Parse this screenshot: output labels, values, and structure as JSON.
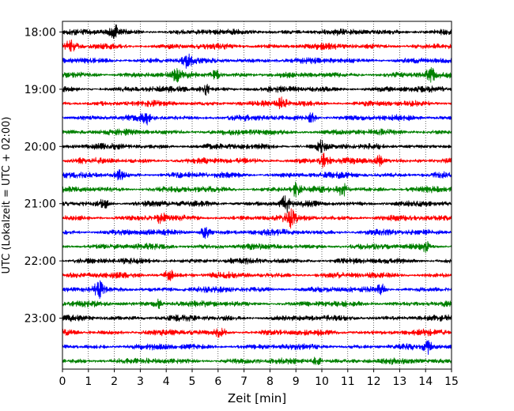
{
  "chart_data": {
    "type": "line",
    "title": "",
    "xlabel": "Zeit  [min]",
    "ylabel": "UTC (Lokalzeit = UTC + 02:00)",
    "xlim": [
      0,
      15
    ],
    "x_ticks": [
      0,
      1,
      2,
      3,
      4,
      5,
      6,
      7,
      8,
      9,
      10,
      11,
      12,
      13,
      14,
      15
    ],
    "y_ticks": [
      "18:00",
      "19:00",
      "20:00",
      "21:00",
      "22:00",
      "23:00"
    ],
    "start_time": "18:00",
    "trace_interval_minutes": 15,
    "trace_count": 24,
    "trace_colors": [
      "#000000",
      "#ff0000",
      "#0000ff",
      "#008000"
    ],
    "vertical_grid": "dotted",
    "events": [
      {
        "trace": 0,
        "minute": 2.0,
        "strength": 2.2
      },
      {
        "trace": 1,
        "minute": 0.3,
        "strength": 1.4
      },
      {
        "trace": 2,
        "minute": 4.8,
        "strength": 2.0
      },
      {
        "trace": 3,
        "minute": 4.4,
        "strength": 1.5
      },
      {
        "trace": 3,
        "minute": 5.9,
        "strength": 1.5
      },
      {
        "trace": 3,
        "minute": 14.2,
        "strength": 1.8
      },
      {
        "trace": 4,
        "minute": 5.5,
        "strength": 1.8
      },
      {
        "trace": 5,
        "minute": 8.5,
        "strength": 2.0
      },
      {
        "trace": 6,
        "minute": 3.2,
        "strength": 1.8
      },
      {
        "trace": 6,
        "minute": 9.6,
        "strength": 1.6
      },
      {
        "trace": 8,
        "minute": 10.0,
        "strength": 1.7
      },
      {
        "trace": 9,
        "minute": 10.1,
        "strength": 2.0
      },
      {
        "trace": 9,
        "minute": 12.2,
        "strength": 1.5
      },
      {
        "trace": 10,
        "minute": 2.2,
        "strength": 1.4
      },
      {
        "trace": 11,
        "minute": 9.0,
        "strength": 2.0
      },
      {
        "trace": 11,
        "minute": 10.8,
        "strength": 2.0
      },
      {
        "trace": 12,
        "minute": 1.6,
        "strength": 1.5
      },
      {
        "trace": 12,
        "minute": 8.6,
        "strength": 2.6
      },
      {
        "trace": 13,
        "minute": 3.8,
        "strength": 1.6
      },
      {
        "trace": 13,
        "minute": 8.8,
        "strength": 3.0
      },
      {
        "trace": 14,
        "minute": 5.5,
        "strength": 2.0
      },
      {
        "trace": 15,
        "minute": 14.0,
        "strength": 1.5
      },
      {
        "trace": 17,
        "minute": 4.1,
        "strength": 1.6
      },
      {
        "trace": 18,
        "minute": 1.4,
        "strength": 2.0
      },
      {
        "trace": 18,
        "minute": 12.3,
        "strength": 1.5
      },
      {
        "trace": 19,
        "minute": 3.7,
        "strength": 1.3
      },
      {
        "trace": 21,
        "minute": 6.1,
        "strength": 1.5
      },
      {
        "trace": 22,
        "minute": 14.1,
        "strength": 1.8
      },
      {
        "trace": 23,
        "minute": 9.8,
        "strength": 1.3
      }
    ]
  }
}
